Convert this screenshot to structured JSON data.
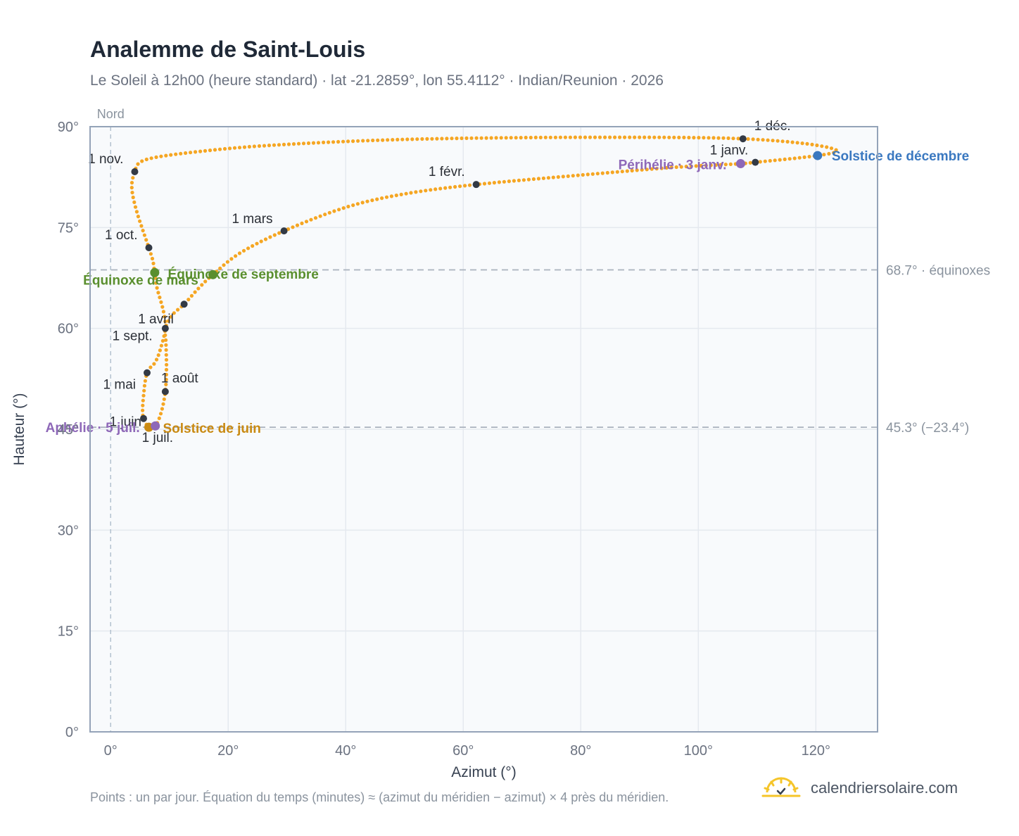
{
  "header": {
    "title": "Analemme de Saint-Louis",
    "subtitle": "Le Soleil à 12h00 (heure standard) · lat -21.2859°, lon 55.4112° · Indian/Reunion · 2026"
  },
  "footer": {
    "note": "Points : un par jour. Équation du temps (minutes) ≈ (azimut du méridien − azimut) × 4 près du méridien.",
    "brand": "calendriersolaire.com"
  },
  "colors": {
    "curve": "#f5a623",
    "marker": "#333a45",
    "equinox": "#5a8f2e",
    "june_solstice": "#c98a12",
    "december_solstice": "#3a78c0",
    "apsides": "#8e68b8",
    "grid": "#e5e9ef",
    "plot_bg": "#f8fafc",
    "reference": "#aab2bd"
  },
  "chart_data": {
    "type": "scatter",
    "title": "Analemme de Saint-Louis",
    "xlabel": "Azimut (°)",
    "ylabel": "Hauteur (°)",
    "xlim": [
      -3.5,
      130.5
    ],
    "ylim": [
      0,
      90
    ],
    "x_ticks": [
      0,
      20,
      40,
      60,
      80,
      100,
      120
    ],
    "y_ticks": [
      0,
      15,
      30,
      45,
      60,
      75,
      90
    ],
    "x_tick_suffix": "°",
    "y_tick_suffix": "°",
    "grid": true,
    "north_label": "Nord",
    "reference_lines": [
      {
        "y": 68.7,
        "label": "68.7° · équinoxes"
      },
      {
        "y": 45.3,
        "label": "45.3° (−23.4°)"
      }
    ],
    "path": [
      [
        109.7,
        84.7
      ],
      [
        120.3,
        85.7
      ],
      [
        123.5,
        86.5
      ],
      [
        118.0,
        87.5
      ],
      [
        107.6,
        88.2
      ],
      [
        95.0,
        88.4
      ],
      [
        75.0,
        88.4
      ],
      [
        55.0,
        88.2
      ],
      [
        40.0,
        87.8
      ],
      [
        25.0,
        87.1
      ],
      [
        15.0,
        86.3
      ],
      [
        8.0,
        85.5
      ],
      [
        5.0,
        84.7
      ],
      [
        4.1,
        83.3
      ],
      [
        3.6,
        81.0
      ],
      [
        4.4,
        77.5
      ],
      [
        6.5,
        72.0
      ],
      [
        7.2,
        70.0
      ],
      [
        7.5,
        68.3
      ],
      [
        7.9,
        66.0
      ],
      [
        9.0,
        62.5
      ],
      [
        9.3,
        60.0
      ],
      [
        8.5,
        57.0
      ],
      [
        7.6,
        55.0
      ],
      [
        6.2,
        53.4
      ],
      [
        5.6,
        50.0
      ],
      [
        5.5,
        47.0
      ],
      [
        6.5,
        45.3
      ],
      [
        7.6,
        45.5
      ],
      [
        8.6,
        47.5
      ],
      [
        9.3,
        50.6
      ],
      [
        9.5,
        54.0
      ],
      [
        9.4,
        58.0
      ],
      [
        9.3,
        60.0
      ],
      [
        10.5,
        62.0
      ],
      [
        12.5,
        63.6
      ],
      [
        15.0,
        66.0
      ],
      [
        17.4,
        68.0
      ],
      [
        22.0,
        71.2
      ],
      [
        29.5,
        74.5
      ],
      [
        40.0,
        78.0
      ],
      [
        50.0,
        80.0
      ],
      [
        62.2,
        81.4
      ],
      [
        80.0,
        82.8
      ],
      [
        95.0,
        83.9
      ],
      [
        103.0,
        84.3
      ],
      [
        107.2,
        84.5
      ],
      [
        109.7,
        84.7
      ]
    ],
    "monthly_markers": [
      {
        "label": "1 janv.",
        "x": 109.7,
        "y": 84.7
      },
      {
        "label": "1 févr.",
        "x": 62.2,
        "y": 81.4
      },
      {
        "label": "1 mars",
        "x": 29.5,
        "y": 74.5
      },
      {
        "label": "1 avril",
        "x": 9.3,
        "y": 60.0
      },
      {
        "label": "1 mai",
        "x": 6.2,
        "y": 53.4
      },
      {
        "label": "1 juin",
        "x": 5.6,
        "y": 46.6
      },
      {
        "label": "1 juil.",
        "x": 6.4,
        "y": 45.4
      },
      {
        "label": "1 août",
        "x": 9.3,
        "y": 50.6
      },
      {
        "label": "1 sept.",
        "x": 12.5,
        "y": 63.6
      },
      {
        "label": "1 oct.",
        "x": 6.5,
        "y": 72.0
      },
      {
        "label": "1 nov.",
        "x": 4.1,
        "y": 83.3
      },
      {
        "label": "1 déc.",
        "x": 107.6,
        "y": 88.2
      }
    ],
    "special_points": [
      {
        "label": "Solstice de décembre",
        "x": 120.3,
        "y": 85.7,
        "kind": "december_solstice"
      },
      {
        "label": "Périhélie · 3 janv.",
        "x": 107.2,
        "y": 84.5,
        "kind": "apsides"
      },
      {
        "label": "Équinoxe de mars",
        "x": 7.5,
        "y": 68.3,
        "kind": "equinox"
      },
      {
        "label": "Équinoxe de septembre",
        "x": 17.4,
        "y": 68.0,
        "kind": "equinox"
      },
      {
        "label": "Solstice de juin",
        "x": 6.5,
        "y": 45.3,
        "kind": "june_solstice"
      },
      {
        "label": "Aphélie · 5 juil.",
        "x": 7.6,
        "y": 45.5,
        "kind": "apsides"
      }
    ]
  }
}
